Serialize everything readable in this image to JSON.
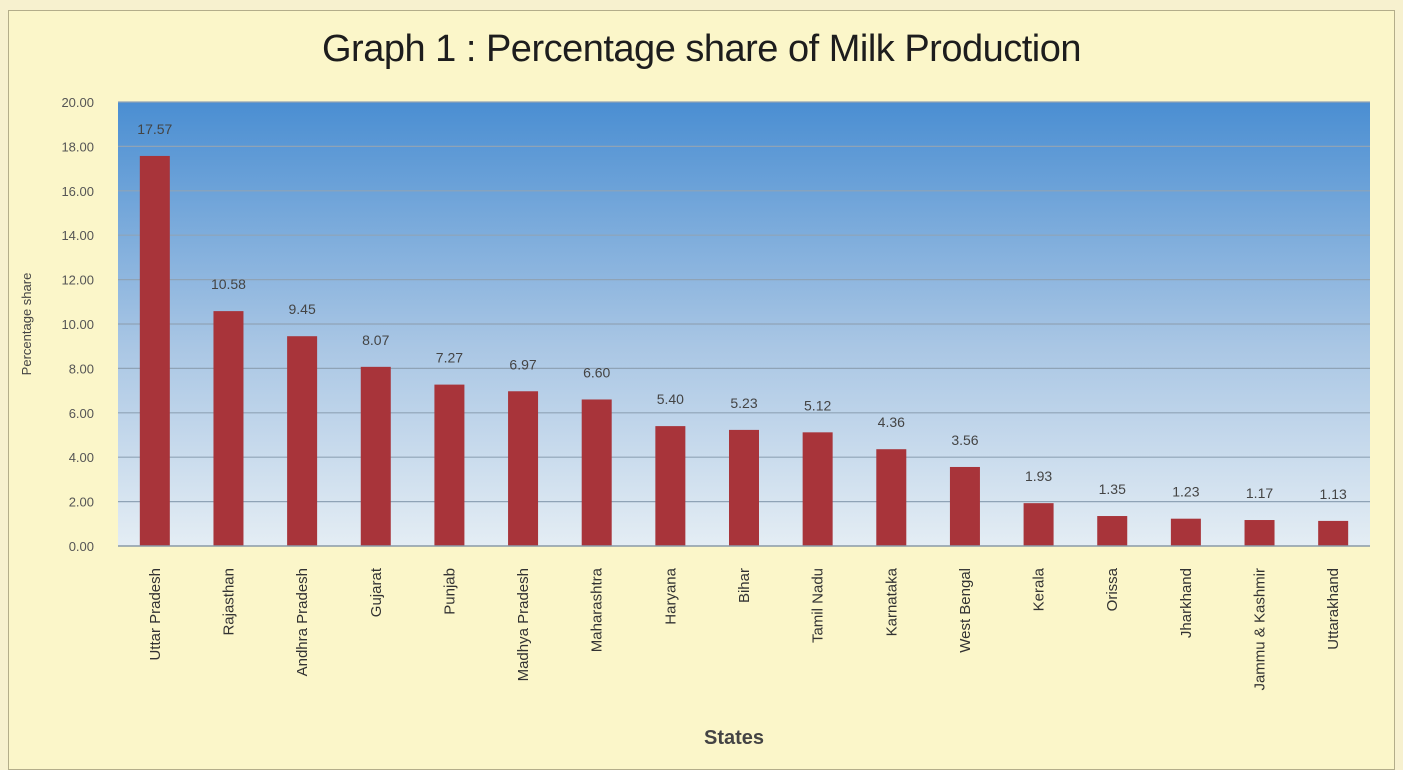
{
  "chart_data": {
    "type": "bar",
    "title": "Graph 1 : Percentage share of Milk Production",
    "xlabel": "States",
    "ylabel": "Percentage share",
    "ylim": [
      0,
      20
    ],
    "yticks": [
      "0.00",
      "2.00",
      "4.00",
      "6.00",
      "8.00",
      "10.00",
      "12.00",
      "14.00",
      "16.00",
      "18.00",
      "20.00"
    ],
    "grid": true,
    "categories": [
      "Uttar Pradesh",
      "Rajasthan",
      "Andhra Pradesh",
      "Gujarat",
      "Punjab",
      "Madhya Pradesh",
      "Maharashtra",
      "Haryana",
      "Bihar",
      "Tamil Nadu",
      "Karnataka",
      "West Bengal",
      "Kerala",
      "Orissa",
      "Jharkhand",
      "Jammu & Kashmir",
      "Uttarakhand"
    ],
    "values": [
      17.57,
      10.58,
      9.45,
      8.07,
      7.27,
      6.97,
      6.6,
      5.4,
      5.23,
      5.12,
      4.36,
      3.56,
      1.93,
      1.35,
      1.23,
      1.17,
      1.13
    ],
    "data_labels": [
      "17.57",
      "10.58",
      "9.45",
      "8.07",
      "7.27",
      "6.97",
      "6.60",
      "5.40",
      "5.23",
      "5.12",
      "4.36",
      "3.56",
      "1.93",
      "1.35",
      "1.23",
      "1.17",
      "1.13"
    ],
    "colors": {
      "bar": "#a8343a",
      "plot_top": "#4a8ed2",
      "plot_bottom": "#e4edf4",
      "background": "#fbf6c9"
    }
  }
}
